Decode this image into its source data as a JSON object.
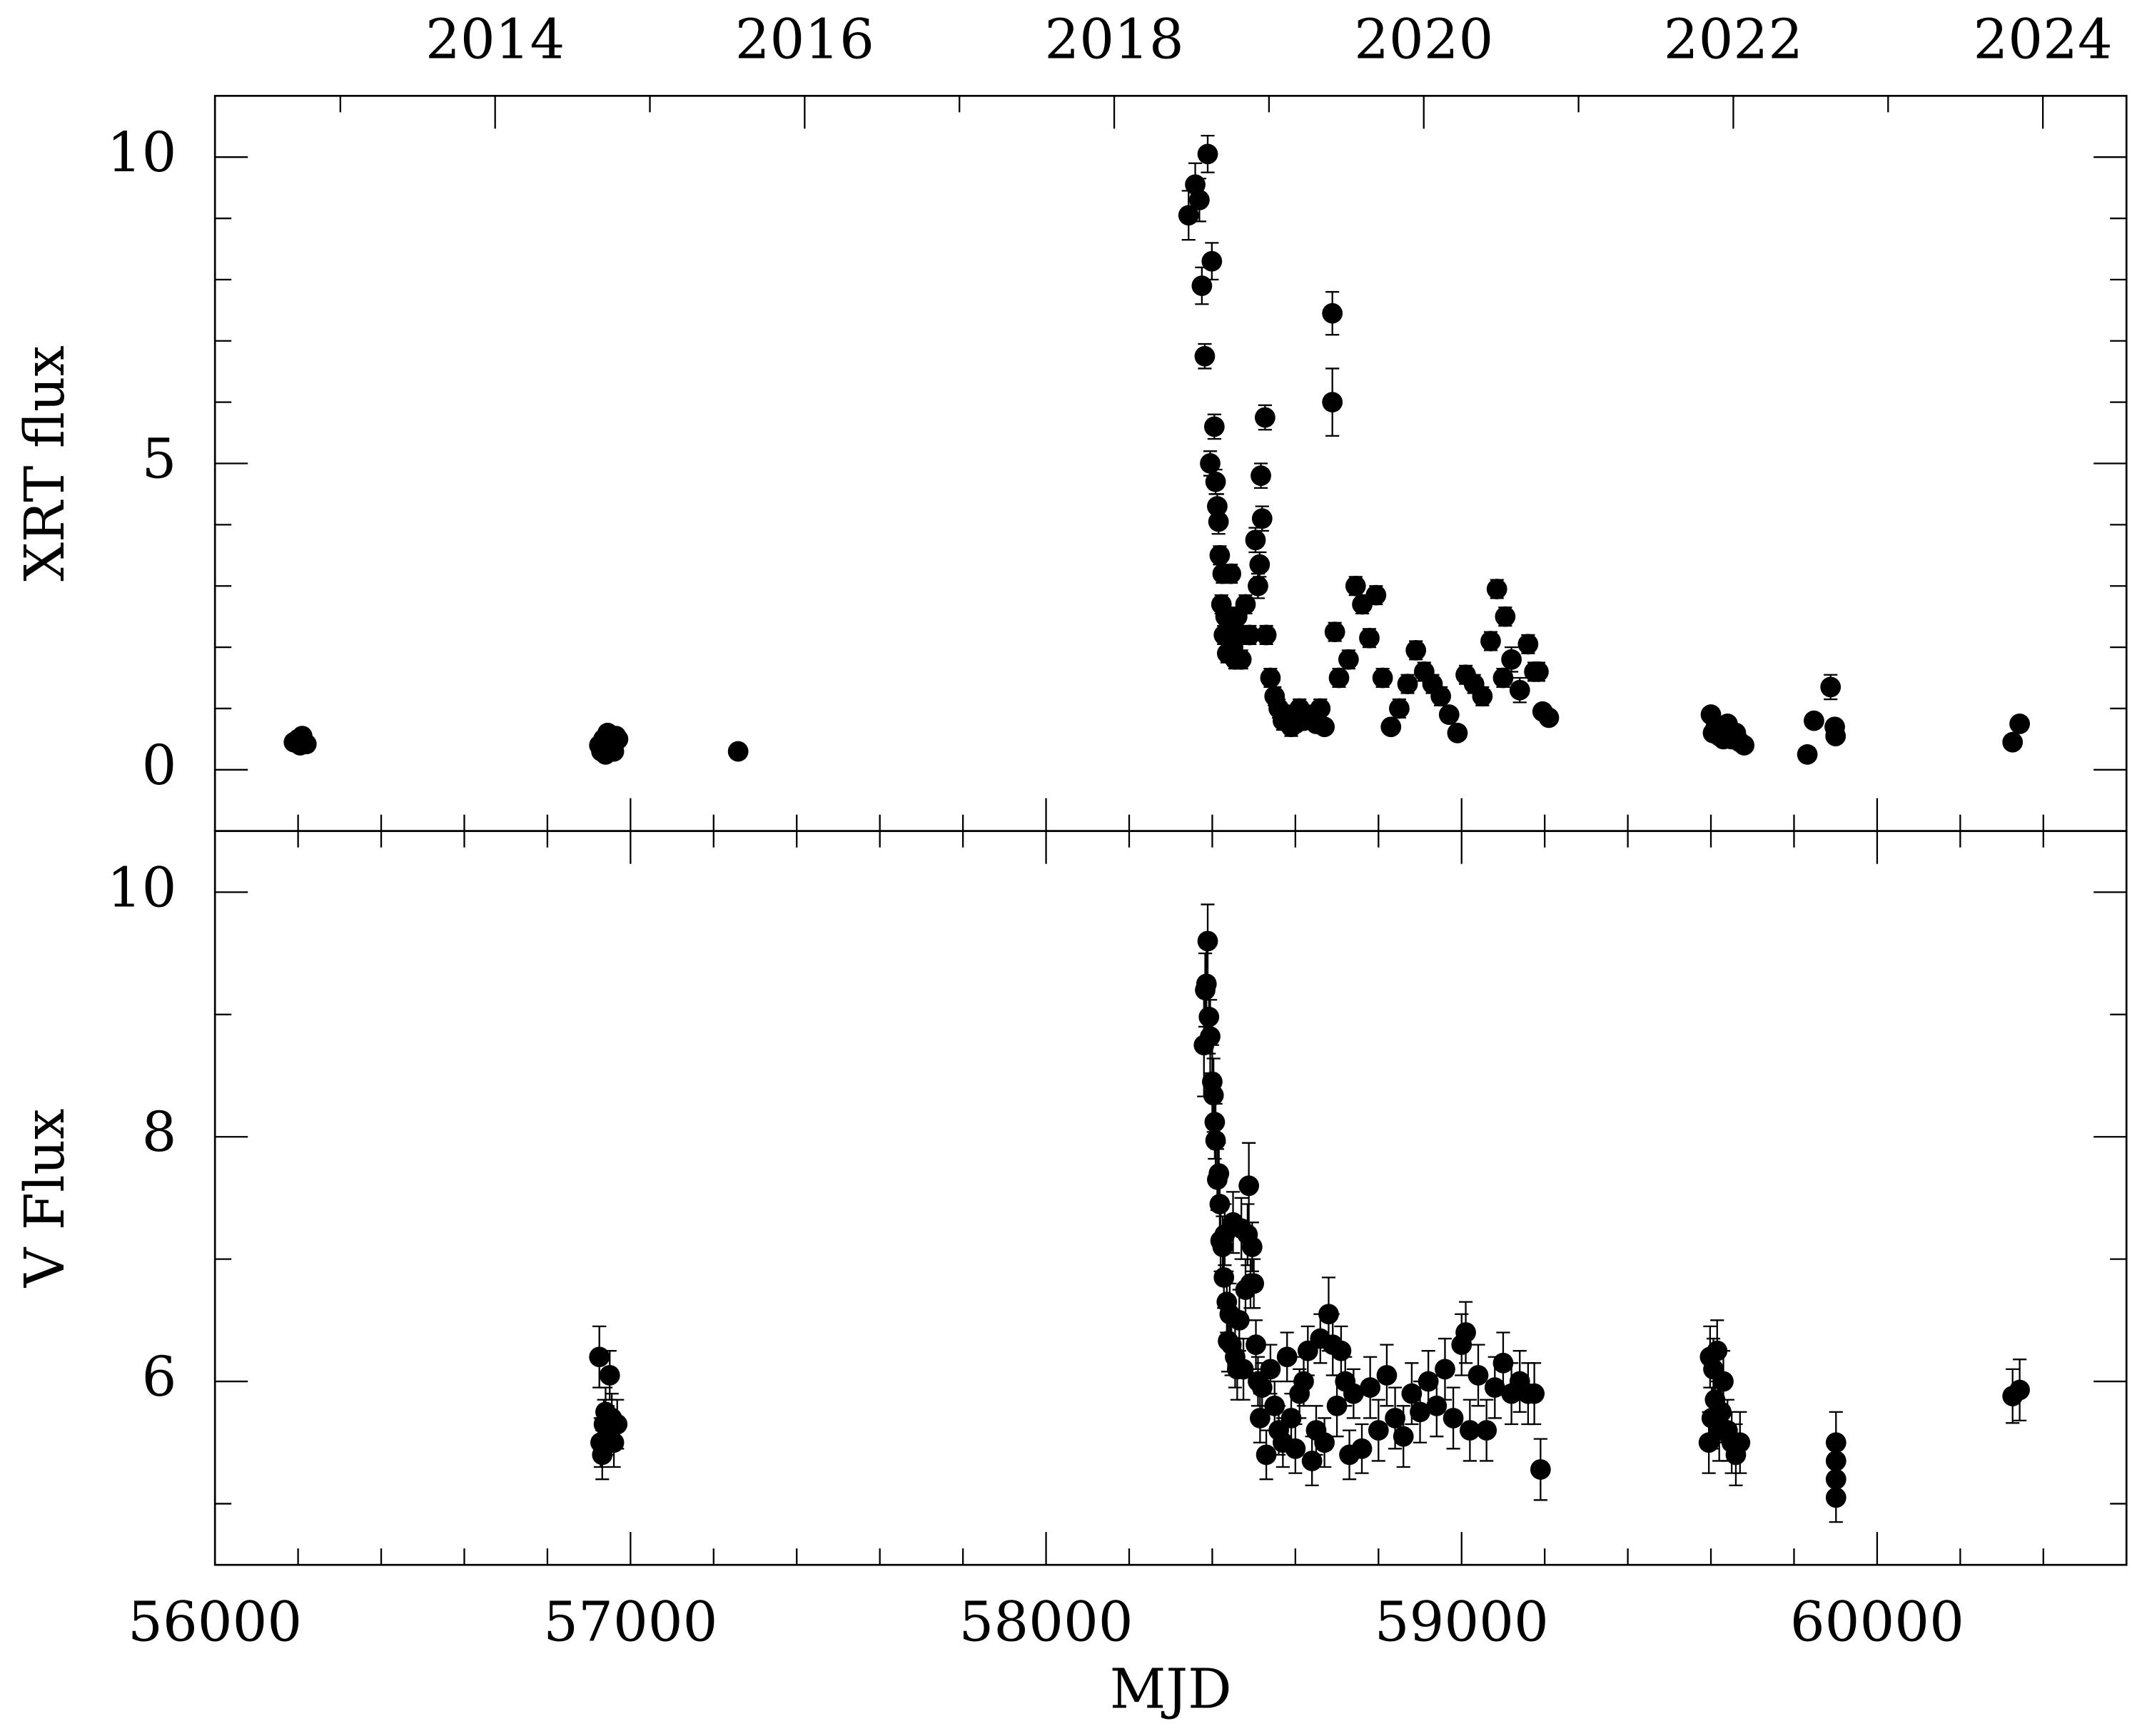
{
  "chart_data": [
    {
      "type": "scatter",
      "ylabel": "XRT flux",
      "show_xtick_labels": false,
      "xlim": [
        56000,
        60600
      ],
      "xticks": [
        56000,
        57000,
        58000,
        59000,
        60000
      ],
      "xminorticks": [
        56200,
        56400,
        56600,
        56800,
        57200,
        57400,
        57600,
        57800,
        58200,
        58400,
        58600,
        58800,
        59200,
        59400,
        59600,
        59800,
        60200,
        60400
      ],
      "x2lim": [
        2012.19,
        2024.54
      ],
      "x2ticks": [
        2014,
        2016,
        2018,
        2020,
        2022,
        2024
      ],
      "x2minorticks": [
        2013,
        2015,
        2017,
        2019,
        2021,
        2023
      ],
      "ylim": [
        -1,
        11
      ],
      "yticks": [
        0,
        5,
        10
      ],
      "yminorticks": [
        1,
        2,
        3,
        4,
        6,
        7,
        8,
        9
      ],
      "series": [
        {
          "color": "#000000",
          "x": [
            56190,
            56200,
            56205,
            56210,
            56220,
            56925,
            56930,
            56935,
            56940,
            56945,
            56950,
            56955,
            56960,
            56965,
            56970,
            57259,
            58343,
            58359,
            58369,
            58375,
            58382,
            58389,
            58395,
            58399,
            58405,
            58408,
            58412,
            58415,
            58418,
            58422,
            58425,
            58428,
            58432,
            58436,
            58440,
            58445,
            58450,
            58455,
            58460,
            58465,
            58470,
            58480,
            58490,
            58504,
            58510,
            58514,
            58517,
            58520,
            58527,
            58530,
            58540,
            58550,
            58560,
            58570,
            58580,
            58590,
            58600,
            58610,
            58620,
            58640,
            58650,
            58660,
            58670,
            58689,
            58689,
            58695,
            58705,
            58728,
            58745,
            58761,
            58778,
            58794,
            58810,
            58830,
            58850,
            58870,
            58890,
            58910,
            58930,
            58950,
            58970,
            58990,
            59010,
            59030,
            59050,
            59070,
            59085,
            59100,
            59105,
            59120,
            59140,
            59160,
            59175,
            59185,
            59195,
            59210,
            59600,
            59605,
            59612,
            59620,
            59630,
            59640,
            59650,
            59660,
            59670,
            59680,
            59832,
            59848,
            59888,
            59898,
            59900,
            60326,
            60343
          ],
          "values": [
            0.45,
            0.5,
            0.4,
            0.55,
            0.42,
            0.4,
            0.3,
            0.5,
            0.25,
            0.6,
            0.35,
            0.45,
            0.3,
            0.55,
            0.5,
            0.3,
            9.05,
            9.55,
            9.3,
            7.9,
            6.75,
            10.05,
            5.0,
            8.3,
            5.6,
            4.7,
            4.3,
            4.05,
            3.5,
            2.7,
            3.2,
            2.2,
            2.5,
            1.9,
            2.3,
            3.2,
            2.0,
            1.8,
            2.5,
            2.2,
            1.8,
            2.7,
            2.2,
            3.75,
            3.0,
            3.35,
            4.8,
            4.1,
            5.75,
            2.2,
            1.5,
            1.2,
            1.0,
            0.8,
            0.9,
            0.7,
            0.75,
            1.0,
            0.8,
            0.9,
            0.75,
            1.0,
            0.7,
            7.45,
            6.0,
            2.25,
            1.5,
            1.8,
            3.0,
            2.7,
            2.15,
            2.85,
            1.5,
            0.7,
            1.0,
            1.4,
            1.95,
            1.6,
            1.4,
            1.2,
            0.9,
            0.6,
            1.55,
            1.4,
            1.2,
            2.1,
            2.95,
            1.5,
            2.5,
            1.8,
            1.3,
            2.05,
            1.6,
            1.6,
            0.95,
            0.85,
            0.9,
            0.6,
            0.7,
            0.55,
            0.5,
            0.75,
            0.5,
            0.6,
            0.45,
            0.4,
            0.25,
            0.8,
            1.35,
            0.7,
            0.55,
            0.45,
            0.75
          ],
          "errors": [
            0.05,
            0.05,
            0.05,
            0.06,
            0.05,
            0.05,
            0.05,
            0.06,
            0.05,
            0.06,
            0.05,
            0.05,
            0.05,
            0.06,
            0.05,
            0.05,
            0.4,
            0.35,
            0.35,
            0.3,
            0.2,
            0.3,
            0.2,
            0.3,
            0.2,
            0.2,
            0.2,
            0.2,
            0.15,
            0.15,
            0.15,
            0.15,
            0.15,
            0.15,
            0.15,
            0.15,
            0.15,
            0.15,
            0.15,
            0.15,
            0.15,
            0.15,
            0.15,
            0.2,
            0.2,
            0.2,
            0.2,
            0.2,
            0.2,
            0.15,
            0.15,
            0.15,
            0.15,
            0.15,
            0.15,
            0.15,
            0.1,
            0.15,
            0.1,
            0.1,
            0.1,
            0.15,
            0.1,
            0.35,
            0.55,
            0.15,
            0.15,
            0.15,
            0.15,
            0.15,
            0.15,
            0.15,
            0.15,
            0.1,
            0.15,
            0.15,
            0.15,
            0.15,
            0.15,
            0.15,
            0.1,
            0.1,
            0.15,
            0.15,
            0.15,
            0.15,
            0.15,
            0.15,
            0.15,
            0.2,
            0.2,
            0.15,
            0.15,
            0.15,
            0.1,
            0.1,
            0.08,
            0.08,
            0.08,
            0.08,
            0.08,
            0.08,
            0.08,
            0.08,
            0.08,
            0.08,
            0.08,
            0.08,
            0.2,
            0.1,
            0.1,
            0.1,
            0.1
          ]
        }
      ]
    },
    {
      "type": "scatter",
      "ylabel": "V Flux",
      "xlabel": "MJD",
      "show_xtick_labels": true,
      "xlim": [
        56000,
        60600
      ],
      "xticks": [
        56000,
        57000,
        58000,
        59000,
        60000
      ],
      "xminorticks": [
        56200,
        56400,
        56600,
        56800,
        57200,
        57400,
        57600,
        57800,
        58200,
        58400,
        58600,
        58800,
        59200,
        59400,
        59600,
        59800,
        60200,
        60400
      ],
      "ylim": [
        4.5,
        10.5
      ],
      "yticks": [
        6,
        8,
        10
      ],
      "yminorticks": [
        5,
        7,
        9
      ],
      "series": [
        {
          "color": "#000000",
          "x": [
            56925,
            56928,
            56932,
            56936,
            56940,
            56945,
            56950,
            56955,
            56960,
            56968,
            58380,
            58383,
            58386,
            58389,
            58392,
            58395,
            58400,
            58403,
            58406,
            58408,
            58412,
            58416,
            58418,
            58420,
            58425,
            58428,
            58430,
            58435,
            58438,
            58442,
            58446,
            58450,
            58455,
            58460,
            58465,
            58470,
            58475,
            58480,
            58485,
            58488,
            58492,
            58496,
            58500,
            58505,
            58510,
            58515,
            58520,
            58530,
            58540,
            58550,
            58560,
            58570,
            58580,
            58590,
            58600,
            58610,
            58620,
            58630,
            58640,
            58650,
            58660,
            58670,
            58680,
            58690,
            58700,
            58710,
            58720,
            58730,
            58740,
            58760,
            58780,
            58800,
            58820,
            58840,
            58860,
            58880,
            58900,
            58920,
            58940,
            58960,
            58980,
            59000,
            59010,
            59020,
            59040,
            59060,
            59080,
            59100,
            59120,
            59140,
            59160,
            59175,
            59190,
            59595,
            59598,
            59602,
            59606,
            59610,
            59615,
            59620,
            59625,
            59630,
            59640,
            59650,
            59660,
            59670,
            59901,
            59901,
            59901,
            59901,
            60326,
            60343
          ],
          "values": [
            6.2,
            5.5,
            5.4,
            5.65,
            5.75,
            5.6,
            6.05,
            5.7,
            5.5,
            5.65,
            8.75,
            9.2,
            9.25,
            9.6,
            8.98,
            8.82,
            8.45,
            8.34,
            8.12,
            7.97,
            7.65,
            7.7,
            7.45,
            7.15,
            7.1,
            6.85,
            7.2,
            6.65,
            6.33,
            6.55,
            6.3,
            7.3,
            6.2,
            6.1,
            6.5,
            7.25,
            6.1,
            6.75,
            7.2,
            7.6,
            6.8,
            7.1,
            6.8,
            6.3,
            6.0,
            5.7,
            5.95,
            5.4,
            6.1,
            5.8,
            5.6,
            5.5,
            6.2,
            5.7,
            5.45,
            5.9,
            6.0,
            6.25,
            5.35,
            5.6,
            6.35,
            5.5,
            6.55,
            6.3,
            5.8,
            6.25,
            6.0,
            5.4,
            5.9,
            5.45,
            5.95,
            5.6,
            6.05,
            5.7,
            5.55,
            5.9,
            5.75,
            6.0,
            5.8,
            6.1,
            5.7,
            6.3,
            6.4,
            5.6,
            6.05,
            5.6,
            5.95,
            6.15,
            5.9,
            6.0,
            5.9,
            5.9,
            5.28,
            5.5,
            6.2,
            5.7,
            6.1,
            5.85,
            6.25,
            5.6,
            5.75,
            6.0,
            5.6,
            5.5,
            5.4,
            5.5,
            5.5,
            5.35,
            5.2,
            5.05,
            5.88,
            5.93
          ],
          "errors": [
            0.25,
            0.2,
            0.2,
            0.2,
            0.2,
            0.2,
            0.2,
            0.2,
            0.2,
            0.2,
            0.42,
            0.3,
            0.3,
            0.3,
            0.3,
            0.3,
            0.3,
            0.3,
            0.3,
            0.3,
            0.25,
            0.25,
            0.25,
            0.25,
            0.25,
            0.25,
            0.25,
            0.25,
            0.25,
            0.25,
            0.25,
            0.25,
            0.25,
            0.25,
            0.25,
            0.25,
            0.25,
            0.25,
            0.25,
            0.35,
            0.2,
            0.2,
            0.2,
            0.2,
            0.2,
            0.2,
            0.2,
            0.2,
            0.2,
            0.2,
            0.2,
            0.2,
            0.2,
            0.2,
            0.2,
            0.2,
            0.2,
            0.2,
            0.2,
            0.2,
            0.2,
            0.2,
            0.3,
            0.25,
            0.25,
            0.2,
            0.2,
            0.2,
            0.2,
            0.2,
            0.25,
            0.25,
            0.25,
            0.25,
            0.25,
            0.25,
            0.25,
            0.25,
            0.25,
            0.25,
            0.25,
            0.25,
            0.25,
            0.25,
            0.25,
            0.25,
            0.25,
            0.25,
            0.25,
            0.25,
            0.25,
            0.25,
            0.25,
            0.25,
            0.25,
            0.25,
            0.25,
            0.25,
            0.25,
            0.25,
            0.25,
            0.25,
            0.25,
            0.25,
            0.25,
            0.25,
            0.25,
            0.2,
            0.2,
            0.2,
            0.22,
            0.25
          ]
        }
      ]
    }
  ]
}
